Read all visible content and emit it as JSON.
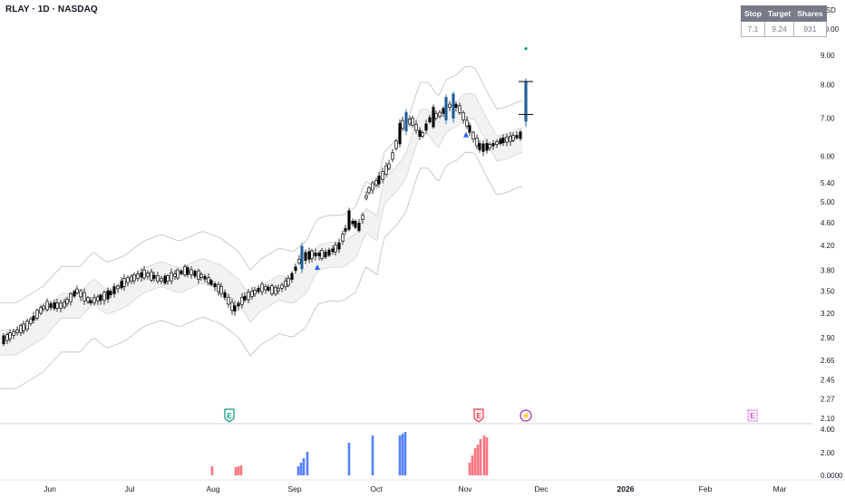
{
  "header": {
    "title": "RLAY · 1D · NASDAQ",
    "currency": "USD"
  },
  "stats_table": {
    "headers": [
      "Stop",
      "Target",
      "Shares"
    ],
    "values": [
      "7.1",
      "9.24",
      "931"
    ]
  },
  "chart_data": {
    "type": "candlestick",
    "symbol": "RLAY",
    "interval": "1D",
    "exchange": "NASDAQ",
    "price_scale": "log",
    "price_ticks": [
      "10.00",
      "9.00",
      "8.00",
      "7.00",
      "6.00",
      "5.40",
      "5.00",
      "4.60",
      "4.20",
      "3.80",
      "3.50",
      "3.20",
      "2.90",
      "2.65",
      "2.45",
      "2.27",
      "2.10"
    ],
    "volume_ticks": [
      "4.00",
      "2.00",
      "0.0000"
    ],
    "months": [
      "Jun",
      "Jul",
      "Aug",
      "Sep",
      "Oct",
      "Nov",
      "Dec",
      "2026",
      "Feb",
      "Mar"
    ],
    "trade_levels": {
      "stop": 7.1,
      "target": 9.24,
      "shares": 931
    },
    "events": [
      "E",
      "E",
      "⚡",
      "E"
    ],
    "colors": {
      "up_strong": "#2962ff",
      "up_fill": "#ffffff",
      "down": "#000000",
      "bull_candle_highlight": "#1f5f9a",
      "band_line": "#bdbdbd",
      "band_fill": "#f2f2f2",
      "earnings_past": "#089981",
      "earnings_next": "#f23645",
      "dividend": "#9c27b0",
      "vol_red": "#f7525f",
      "vol_blue": "#2962ff",
      "marker_blue": "#2962ff",
      "target_dot": "#089981"
    }
  }
}
